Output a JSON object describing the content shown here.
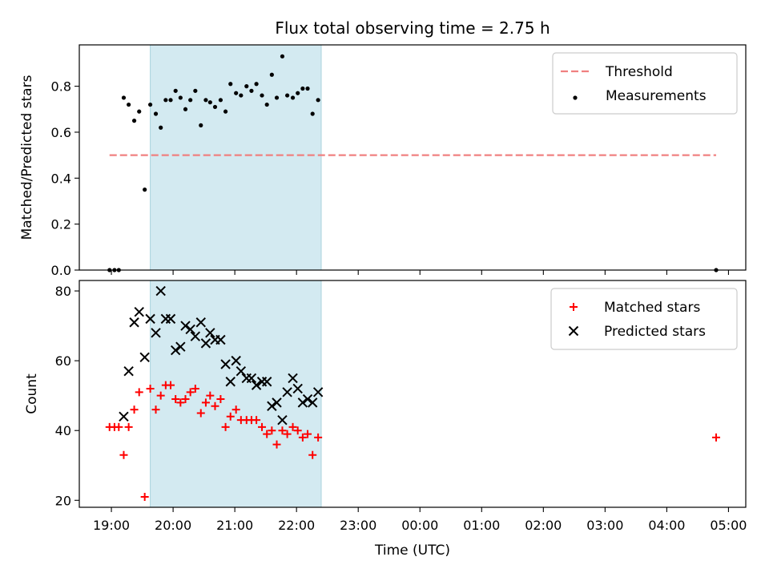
{
  "chart_data": {
    "type": "scatter",
    "title": "Flux total observing time = 2.75 h",
    "xlabel": "Time (UTC)",
    "x_tick_labels": [
      "19:00",
      "20:00",
      "21:00",
      "22:00",
      "23:00",
      "00:00",
      "01:00",
      "02:00",
      "03:00",
      "04:00",
      "05:00"
    ],
    "x_tick_hours": [
      0,
      1,
      2,
      3,
      4,
      5,
      6,
      7,
      8,
      9,
      10
    ],
    "xlim_hours_after_19_00": [
      -0.52,
      10.28
    ],
    "shaded_span_hours": [
      0.63,
      3.4
    ],
    "shaded_color": "#d3eaf1",
    "panels": [
      {
        "id": "ratio",
        "ylabel": "Matched/Predicted stars",
        "ylim": [
          0,
          0.98
        ],
        "yticks": [
          0.0,
          0.2,
          0.4,
          0.6,
          0.8
        ],
        "ytick_labels": [
          "0.0",
          "0.2",
          "0.4",
          "0.6",
          "0.8"
        ],
        "legend_position": "top-right",
        "threshold": {
          "name": "Threshold",
          "y": 0.5,
          "x_range": [
            -0.03,
            9.8
          ],
          "color": "#f08080"
        },
        "series": [
          {
            "name": "Measurements",
            "marker": "dot",
            "color": "#000000",
            "x": [
              -0.03,
              0.05,
              0.12,
              0.2,
              0.28,
              0.37,
              0.45,
              0.54,
              0.63,
              0.72,
              0.8,
              0.88,
              0.96,
              1.04,
              1.12,
              1.2,
              1.28,
              1.36,
              1.45,
              1.53,
              1.6,
              1.68,
              1.77,
              1.85,
              1.93,
              2.02,
              2.1,
              2.19,
              2.27,
              2.35,
              2.44,
              2.52,
              2.6,
              2.68,
              2.77,
              2.85,
              2.94,
              3.02,
              3.1,
              3.18,
              3.26,
              3.35,
              9.8
            ],
            "y": [
              0.0,
              0.0,
              0.0,
              0.75,
              0.72,
              0.65,
              0.69,
              0.35,
              0.72,
              0.68,
              0.62,
              0.74,
              0.74,
              0.78,
              0.75,
              0.7,
              0.74,
              0.78,
              0.63,
              0.74,
              0.73,
              0.71,
              0.74,
              0.69,
              0.81,
              0.77,
              0.76,
              0.8,
              0.78,
              0.81,
              0.76,
              0.72,
              0.85,
              0.75,
              0.93,
              0.76,
              0.75,
              0.77,
              0.79,
              0.79,
              0.68,
              0.74,
              0.0
            ]
          }
        ]
      },
      {
        "id": "count",
        "ylabel": "Count",
        "ylim": [
          18,
          83
        ],
        "yticks": [
          20,
          40,
          60,
          80
        ],
        "ytick_labels": [
          "20",
          "40",
          "60",
          "80"
        ],
        "legend_position": "top-right",
        "series": [
          {
            "name": "Matched stars",
            "marker": "plus",
            "color": "#ff0000",
            "x": [
              -0.03,
              0.05,
              0.12,
              0.2,
              0.28,
              0.37,
              0.45,
              0.54,
              0.63,
              0.72,
              0.8,
              0.88,
              0.96,
              1.04,
              1.12,
              1.2,
              1.28,
              1.36,
              1.45,
              1.53,
              1.6,
              1.68,
              1.77,
              1.85,
              1.93,
              2.02,
              2.1,
              2.19,
              2.27,
              2.35,
              2.44,
              2.52,
              2.6,
              2.68,
              2.77,
              2.85,
              2.94,
              3.02,
              3.1,
              3.18,
              3.26,
              3.35,
              9.8
            ],
            "y": [
              41,
              41,
              41,
              33,
              41,
              46,
              51,
              21,
              52,
              46,
              50,
              53,
              53,
              49,
              48,
              49,
              51,
              52,
              45,
              48,
              50,
              47,
              49,
              41,
              44,
              46,
              43,
              43,
              43,
              43,
              41,
              39,
              40,
              36,
              40,
              39,
              41,
              40,
              38,
              39,
              33,
              38,
              38
            ]
          },
          {
            "name": "Predicted stars",
            "marker": "x",
            "color": "#000000",
            "x": [
              0.2,
              0.28,
              0.37,
              0.45,
              0.54,
              0.63,
              0.72,
              0.8,
              0.88,
              0.96,
              1.04,
              1.12,
              1.2,
              1.28,
              1.36,
              1.45,
              1.53,
              1.6,
              1.68,
              1.77,
              1.85,
              1.93,
              2.02,
              2.1,
              2.19,
              2.27,
              2.35,
              2.44,
              2.52,
              2.6,
              2.68,
              2.77,
              2.85,
              2.94,
              3.02,
              3.1,
              3.18,
              3.26,
              3.35
            ],
            "y": [
              44,
              57,
              71,
              74,
              61,
              72,
              68,
              80,
              72,
              72,
              63,
              64,
              70,
              69,
              67,
              71,
              65,
              68,
              66,
              66,
              59,
              54,
              60,
              57,
              55,
              55,
              53,
              54,
              54,
              47,
              48,
              43,
              51,
              55,
              52,
              48,
              49,
              48,
              51
            ]
          }
        ]
      }
    ]
  }
}
